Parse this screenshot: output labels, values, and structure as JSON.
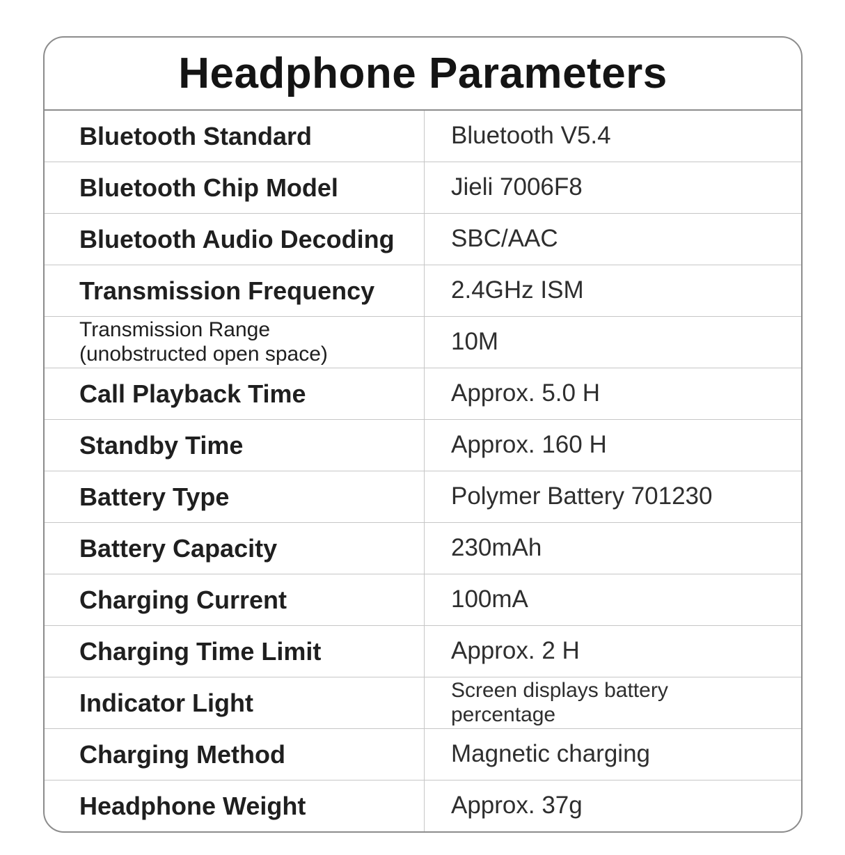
{
  "table": {
    "title": "Headphone Parameters",
    "rows": [
      {
        "label": "Bluetooth Standard",
        "value": "Bluetooth V5.4"
      },
      {
        "label": "Bluetooth Chip Model",
        "value": "Jieli 7006F8"
      },
      {
        "label": "Bluetooth Audio Decoding",
        "value": "SBC/AAC"
      },
      {
        "label": "Transmission Frequency",
        "value": "2.4GHz ISM"
      },
      {
        "label": "Transmission Range (unobstructed open space)",
        "value": "10M"
      },
      {
        "label": "Call Playback Time",
        "value": "Approx. 5.0 H"
      },
      {
        "label": "Standby Time",
        "value": "Approx. 160 H"
      },
      {
        "label": "Battery Type",
        "value": "Polymer Battery 701230"
      },
      {
        "label": "Battery Capacity",
        "value": "230mAh"
      },
      {
        "label": "Charging Current",
        "value": "100mA"
      },
      {
        "label": "Charging Time Limit",
        "value": "Approx. 2 H"
      },
      {
        "label": "Indicator Light",
        "value": "Screen displays battery percentage"
      },
      {
        "label": "Charging Method",
        "value": "Magnetic charging"
      },
      {
        "label": "Headphone Weight",
        "value": "Approx. 37g"
      }
    ]
  },
  "colors": {
    "ink": "#1f1f1f",
    "value_ink": "#2e2e2e",
    "outer_border": "#8c8c8c",
    "inner_line": "#c6c6c6"
  }
}
